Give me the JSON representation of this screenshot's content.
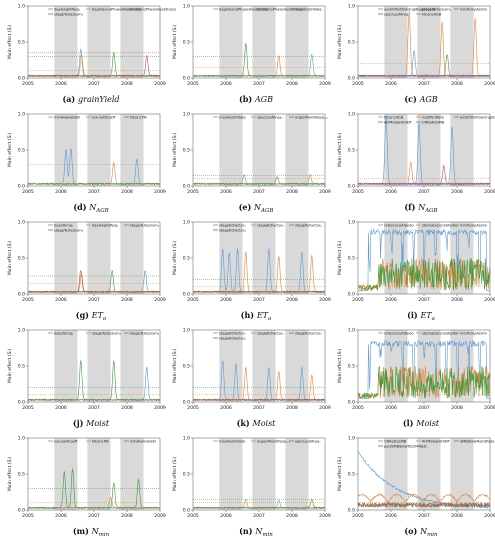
{
  "figure": {
    "colors": [
      "#5b9bd5",
      "#e8823a",
      "#3f9b3f",
      "#c0504d",
      "#9467bd",
      "#8c564b",
      "#e377c2",
      "#7f7f7f",
      "#bcbd22",
      "#17becf"
    ]
  },
  "chart_data": [
    {
      "type": "line",
      "caption_letter": "(a)",
      "caption_var": "grainYield",
      "caption_sub": "",
      "ylabel": "Main effect (Sᵢ)",
      "ylim": [
        0,
        1
      ],
      "xlim": [
        2005,
        2009
      ],
      "x_ticks": [
        "2005",
        "2006",
        "2007",
        "2008",
        "2009"
      ],
      "y_ticks": [
        "0.0",
        "0.5",
        "1.0"
      ],
      "shaded_periods": [
        [
          2005.8,
          2006.5
        ],
        [
          2006.8,
          2007.5
        ],
        [
          2007.8,
          2008.5
        ]
      ],
      "legend": [
        "daylengthReq₁",
        "beginSenoPhaseHeatStress",
        "endSenoPhaseHeatStress",
        "stageTempSum₁"
      ],
      "thresholds": [
        0.1,
        0.3,
        0.35
      ],
      "peaks": [
        [
          2006.6,
          0.38,
          0
        ],
        [
          2006.62,
          0.3,
          1
        ],
        [
          2007.6,
          0.32,
          2
        ],
        [
          2008.6,
          0.28,
          3
        ]
      ]
    },
    {
      "type": "line",
      "caption_letter": "(b)",
      "caption_var": "AGB",
      "caption_sub": "",
      "ylabel": "Main effect (Sᵢ)",
      "ylim": [
        0,
        1
      ],
      "xlim": [
        2005,
        2009
      ],
      "x_ticks": [
        "2005",
        "2006",
        "2007",
        "2008",
        "2009"
      ],
      "y_ticks": [
        "0.0",
        "0.5",
        "1.0"
      ],
      "shaded_periods": [
        [
          2005.8,
          2006.5
        ],
        [
          2006.8,
          2007.5
        ],
        [
          2007.8,
          2008.5
        ]
      ],
      "legend": [
        "beginSenoPhaseHeatStress",
        "endSenoPhaseHeatStress",
        "maxAssimRate"
      ],
      "thresholds": [
        0.15,
        0.3
      ],
      "peaks": [
        [
          2006.6,
          0.45,
          2
        ],
        [
          2007.6,
          0.28,
          1
        ],
        [
          2008.6,
          0.3,
          0
        ]
      ]
    },
    {
      "type": "line",
      "caption_letter": "(c)",
      "caption_var": "AGB",
      "caption_sub": "",
      "ylabel": "Main effect (Sᵢ)",
      "ylim": [
        0,
        1
      ],
      "xlim": [
        2005,
        2009
      ],
      "x_ticks": [
        "2005",
        "2006",
        "2007",
        "2008",
        "2009"
      ],
      "y_ticks": [
        "0.0",
        "0.5",
        "1.0"
      ],
      "shaded_periods": [
        [
          2005.8,
          2006.5
        ],
        [
          2006.8,
          2007.5
        ],
        [
          2007.8,
          2008.5
        ]
      ],
      "legend": [
        "assimPartitioningStage1Leaf",
        "stageTempSum₁",
        "minTempAssim",
        "specLeafArea",
        "NConcAGB"
      ],
      "thresholds": [
        0.2
      ],
      "peaks": [
        [
          2006.55,
          0.9,
          1
        ],
        [
          2007.55,
          0.75,
          1
        ],
        [
          2008.55,
          0.8,
          1
        ],
        [
          2006.7,
          0.35,
          0
        ],
        [
          2007.7,
          0.3,
          2
        ]
      ]
    },
    {
      "type": "line",
      "caption_letter": "(d)",
      "caption_var": "N",
      "caption_sub": "AGB",
      "ylabel": "Main effect (Sᵢ)",
      "ylim": [
        0,
        1
      ],
      "xlim": [
        2005,
        2009
      ],
      "x_ticks": [
        "2005",
        "2006",
        "2007",
        "2008",
        "2009"
      ],
      "y_ticks": [
        "0.0",
        "0.5",
        "1.0"
      ],
      "shaded_periods": [
        [
          2005.8,
          2006.5
        ],
        [
          2006.8,
          2007.5
        ],
        [
          2007.8,
          2008.5
        ]
      ],
      "legend": [
        "minAvailableN",
        "luxuryNCoeff",
        "NConcPN"
      ],
      "thresholds": [
        0.3
      ],
      "peaks": [
        [
          2006.15,
          0.48,
          0
        ],
        [
          2006.3,
          0.5,
          0
        ],
        [
          2007.6,
          0.3,
          1
        ],
        [
          2008.3,
          0.35,
          0
        ]
      ]
    },
    {
      "type": "line",
      "caption_letter": "(e)",
      "caption_var": "N",
      "caption_sub": "AGB",
      "ylabel": "Main effect (Sᵢ)",
      "ylim": [
        0,
        1
      ],
      "xlim": [
        2005,
        2009
      ],
      "x_ticks": [
        "2005",
        "2006",
        "2007",
        "2008",
        "2009"
      ],
      "y_ticks": [
        "0.0",
        "0.5",
        "1.0"
      ],
      "shaded_periods": [
        [
          2005.8,
          2006.5
        ],
        [
          2006.8,
          2007.5
        ],
        [
          2007.8,
          2008.5
        ]
      ],
      "legend": [
        "maxAssimRate",
        "specLeafArea₁",
        "organMaintRespₑₐₗ"
      ],
      "thresholds": [
        0.1,
        0.15
      ],
      "peaks": [
        [
          2006.55,
          0.12,
          0
        ],
        [
          2007.55,
          0.1,
          2
        ],
        [
          2008.55,
          0.12,
          1
        ]
      ]
    },
    {
      "type": "line",
      "caption_letter": "(f)",
      "caption_var": "N",
      "caption_sub": "AGB",
      "ylabel": "Main effect (Sᵢ)",
      "ylim": [
        0,
        1
      ],
      "xlim": [
        2005,
        2009
      ],
      "x_ticks": [
        "2005",
        "2006",
        "2007",
        "2008",
        "2009"
      ],
      "y_ticks": [
        "0.0",
        "0.5",
        "1.0"
      ],
      "shaded_periods": [
        [
          2005.8,
          2006.5
        ],
        [
          2006.8,
          2007.5
        ],
        [
          2007.8,
          2008.5
        ]
      ],
      "legend": [
        "NConcAGB",
        "rootPenRate",
        "assimPartitioningStage1Leaf",
        "AOMSlowUtilEff",
        "CNRatioSMB"
      ],
      "thresholds": [
        0.1
      ],
      "peaks": [
        [
          2005.85,
          0.95,
          0
        ],
        [
          2006.85,
          0.85,
          0
        ],
        [
          2007.85,
          0.8,
          0
        ],
        [
          2006.6,
          0.3,
          1
        ],
        [
          2007.6,
          0.25,
          3
        ]
      ]
    },
    {
      "type": "line",
      "caption_letter": "(g)",
      "caption_var": "ET",
      "caption_sub": "a",
      "ylabel": "Main effect (Sᵢ)",
      "ylim": [
        0,
        1
      ],
      "xlim": [
        2005,
        2009
      ],
      "x_ticks": [
        "2005",
        "2006",
        "2007",
        "2008",
        "2009"
      ],
      "y_ticks": [
        "0.0",
        "0.5",
        "1.0"
      ],
      "shaded_periods": [
        [
          2005.8,
          2006.5
        ],
        [
          2006.8,
          2007.5
        ],
        [
          2007.8,
          2008.5
        ]
      ],
      "legend": [
        "baseTemp₁",
        "daylengthReq₁",
        "stageTempSum₁",
        "stageTempSum₃"
      ],
      "thresholds": [
        0.15,
        0.25
      ],
      "peaks": [
        [
          2006.6,
          0.3,
          3
        ],
        [
          2006.62,
          0.25,
          1
        ],
        [
          2007.55,
          0.3,
          2
        ],
        [
          2008.55,
          0.3,
          0
        ]
      ]
    },
    {
      "type": "line",
      "caption_letter": "(h)",
      "caption_var": "ET",
      "caption_sub": "a",
      "ylabel": "Main effect (Sᵢ)",
      "ylim": [
        0,
        1
      ],
      "xlim": [
        2005,
        2009
      ],
      "x_ticks": [
        "2005",
        "2006",
        "2007",
        "2008",
        "2009"
      ],
      "y_ticks": [
        "0.0",
        "0.5",
        "1.0"
      ],
      "shaded_periods": [
        [
          2005.8,
          2006.5
        ],
        [
          2006.8,
          2007.5
        ],
        [
          2007.8,
          2008.5
        ]
      ],
      "legend": [
        "stageKcFactor₁",
        "stageKcFactor₃",
        "stageKcFactor₂",
        "stageKcFactor₄"
      ],
      "thresholds": [
        0.1,
        0.2
      ],
      "peaks": [
        [
          2005.9,
          0.6,
          0
        ],
        [
          2006.1,
          0.55,
          0
        ],
        [
          2006.35,
          0.6,
          0
        ],
        [
          2006.6,
          0.55,
          1
        ],
        [
          2007.3,
          0.6,
          0
        ],
        [
          2007.6,
          0.5,
          1
        ],
        [
          2008.3,
          0.55,
          0
        ],
        [
          2008.6,
          0.5,
          1
        ]
      ]
    },
    {
      "type": "line",
      "caption_letter": "(i)",
      "caption_var": "ET",
      "caption_sub": "a",
      "ylabel": "Main effect (Sᵢ)",
      "ylim": [
        0,
        1
      ],
      "xlim": [
        2005,
        2009
      ],
      "x_ticks": [
        "2005",
        "2006",
        "2007",
        "2008",
        "2009"
      ],
      "y_ticks": [
        "0.0",
        "0.5",
        "1.0"
      ],
      "shaded_periods": [
        [
          2005.8,
          2006.5
        ],
        [
          2006.8,
          2007.5
        ],
        [
          2007.8,
          2008.5
        ]
      ],
      "legend": [
        "referenceAlbedo",
        "stomataConstAlpha",
        "minTempAssim"
      ],
      "thresholds": [
        0.1
      ],
      "noisy": true,
      "noisy_level": 0.9
    },
    {
      "type": "line",
      "caption_letter": "(j)",
      "caption_var": "Moist",
      "caption_sub": "",
      "ylabel": "Main effect (Sᵢ)",
      "ylim": [
        0,
        1
      ],
      "xlim": [
        2005,
        2009
      ],
      "x_ticks": [
        "2005",
        "2006",
        "2007",
        "2008",
        "2009"
      ],
      "y_ticks": [
        "0.0",
        "0.5",
        "1.0"
      ],
      "shaded_periods": [
        [
          2005.8,
          2006.5
        ],
        [
          2006.8,
          2007.5
        ],
        [
          2007.8,
          2008.5
        ]
      ],
      "legend": [
        "baseTemp₁",
        "stageTempSum₁",
        "stageTempSum₃"
      ],
      "thresholds": [
        0.1,
        0.2
      ],
      "peaks": [
        [
          2006.6,
          0.55,
          2
        ],
        [
          2007.6,
          0.55,
          2
        ],
        [
          2008.6,
          0.45,
          0
        ]
      ]
    },
    {
      "type": "line",
      "caption_letter": "(k)",
      "caption_var": "Moist",
      "caption_sub": "",
      "ylabel": "Main effect (Sᵢ)",
      "ylim": [
        0,
        1
      ],
      "xlim": [
        2005,
        2009
      ],
      "x_ticks": [
        "2005",
        "2006",
        "2007",
        "2008",
        "2009"
      ],
      "y_ticks": [
        "0.0",
        "0.5",
        "1.0"
      ],
      "shaded_periods": [
        [
          2005.8,
          2006.5
        ],
        [
          2006.8,
          2007.5
        ],
        [
          2007.8,
          2008.5
        ]
      ],
      "legend": [
        "stageKcFactor₁",
        "stageKcFactor₂",
        "stageKcFactor₃",
        "stageKcFactor₄"
      ],
      "thresholds": [
        0.1,
        0.2
      ],
      "peaks": [
        [
          2005.9,
          0.55,
          0
        ],
        [
          2006.3,
          0.5,
          0
        ],
        [
          2006.6,
          0.45,
          1
        ],
        [
          2007.3,
          0.45,
          0
        ],
        [
          2007.6,
          0.4,
          1
        ],
        [
          2008.3,
          0.45,
          0
        ],
        [
          2008.6,
          0.35,
          1
        ]
      ]
    },
    {
      "type": "line",
      "caption_letter": "(l)",
      "caption_var": "Moist",
      "caption_sub": "",
      "ylabel": "Main effect (Sᵢ)",
      "ylim": [
        0,
        1
      ],
      "xlim": [
        2005,
        2009
      ],
      "x_ticks": [
        "2005",
        "2006",
        "2007",
        "2008",
        "2009"
      ],
      "y_ticks": [
        "0.0",
        "0.5",
        "1.0"
      ],
      "shaded_periods": [
        [
          2005.8,
          2006.5
        ],
        [
          2006.8,
          2007.5
        ],
        [
          2007.8,
          2008.5
        ]
      ],
      "legend": [
        "referenceAlbedo",
        "stomataConstAlpha",
        "minTempAssim"
      ],
      "thresholds": [
        0.1
      ],
      "noisy": true,
      "noisy_level": 0.85
    },
    {
      "type": "line",
      "caption_letter": "(m)",
      "caption_var": "N",
      "caption_sub": "min",
      "ylabel": "Main effect (Sᵢ)",
      "ylim": [
        0,
        1
      ],
      "xlim": [
        2005,
        2009
      ],
      "x_ticks": [
        "2005",
        "2006",
        "2007",
        "2008",
        "2009"
      ],
      "y_ticks": [
        "0.0",
        "0.5",
        "1.0"
      ],
      "shaded_periods": [
        [
          2005.8,
          2006.5
        ],
        [
          2006.8,
          2007.5
        ],
        [
          2007.8,
          2008.5
        ]
      ],
      "legend": [
        "luxuryNCoeff",
        "NConcPN",
        "minAvailableN"
      ],
      "thresholds": [
        0.1,
        0.3
      ],
      "peaks": [
        [
          2006.1,
          0.5,
          2
        ],
        [
          2006.35,
          0.55,
          2
        ],
        [
          2007.6,
          0.35,
          2
        ],
        [
          2008.35,
          0.4,
          2
        ],
        [
          2007.5,
          0.15,
          1
        ]
      ]
    },
    {
      "type": "line",
      "caption_letter": "(n)",
      "caption_var": "N",
      "caption_sub": "min",
      "ylabel": "Main effect (Sᵢ)",
      "ylim": [
        0,
        1
      ],
      "xlim": [
        2005,
        2009
      ],
      "x_ticks": [
        "2005",
        "2006",
        "2007",
        "2008",
        "2009"
      ],
      "y_ticks": [
        "0.0",
        "0.5",
        "1.0"
      ],
      "shaded_periods": [
        [
          2005.8,
          2006.5
        ],
        [
          2006.8,
          2007.5
        ],
        [
          2007.8,
          2008.5
        ]
      ],
      "legend": [
        "maxAssimilate",
        "organMaintRespₑₐₗ",
        "specLeafArea₁"
      ],
      "thresholds": [
        0.1,
        0.15
      ],
      "peaks": [
        [
          2006.6,
          0.12,
          1
        ],
        [
          2007.6,
          0.1,
          0
        ],
        [
          2008.6,
          0.12,
          2
        ]
      ]
    },
    {
      "type": "line",
      "caption_letter": "(o)",
      "caption_var": "N",
      "caption_sub": "min",
      "ylabel": "Main effect (Sᵢ)",
      "ylim": [
        0,
        1
      ],
      "xlim": [
        2005,
        2009
      ],
      "x_ticks": [
        "2005",
        "2006",
        "2007",
        "2008",
        "2009"
      ],
      "y_ticks": [
        "0.0",
        "0.5",
        "1.0"
      ],
      "shaded_periods": [
        [
          2005.8,
          2006.5
        ],
        [
          2006.8,
          2007.5
        ],
        [
          2007.8,
          2008.5
        ]
      ],
      "legend": [
        "CNRatioSMB",
        "AOMSlowUtilEff",
        "SMBSlowMaintRate",
        "partSMBSlowToSOMFast"
      ],
      "thresholds": [
        0.1
      ],
      "decay": true
    }
  ]
}
